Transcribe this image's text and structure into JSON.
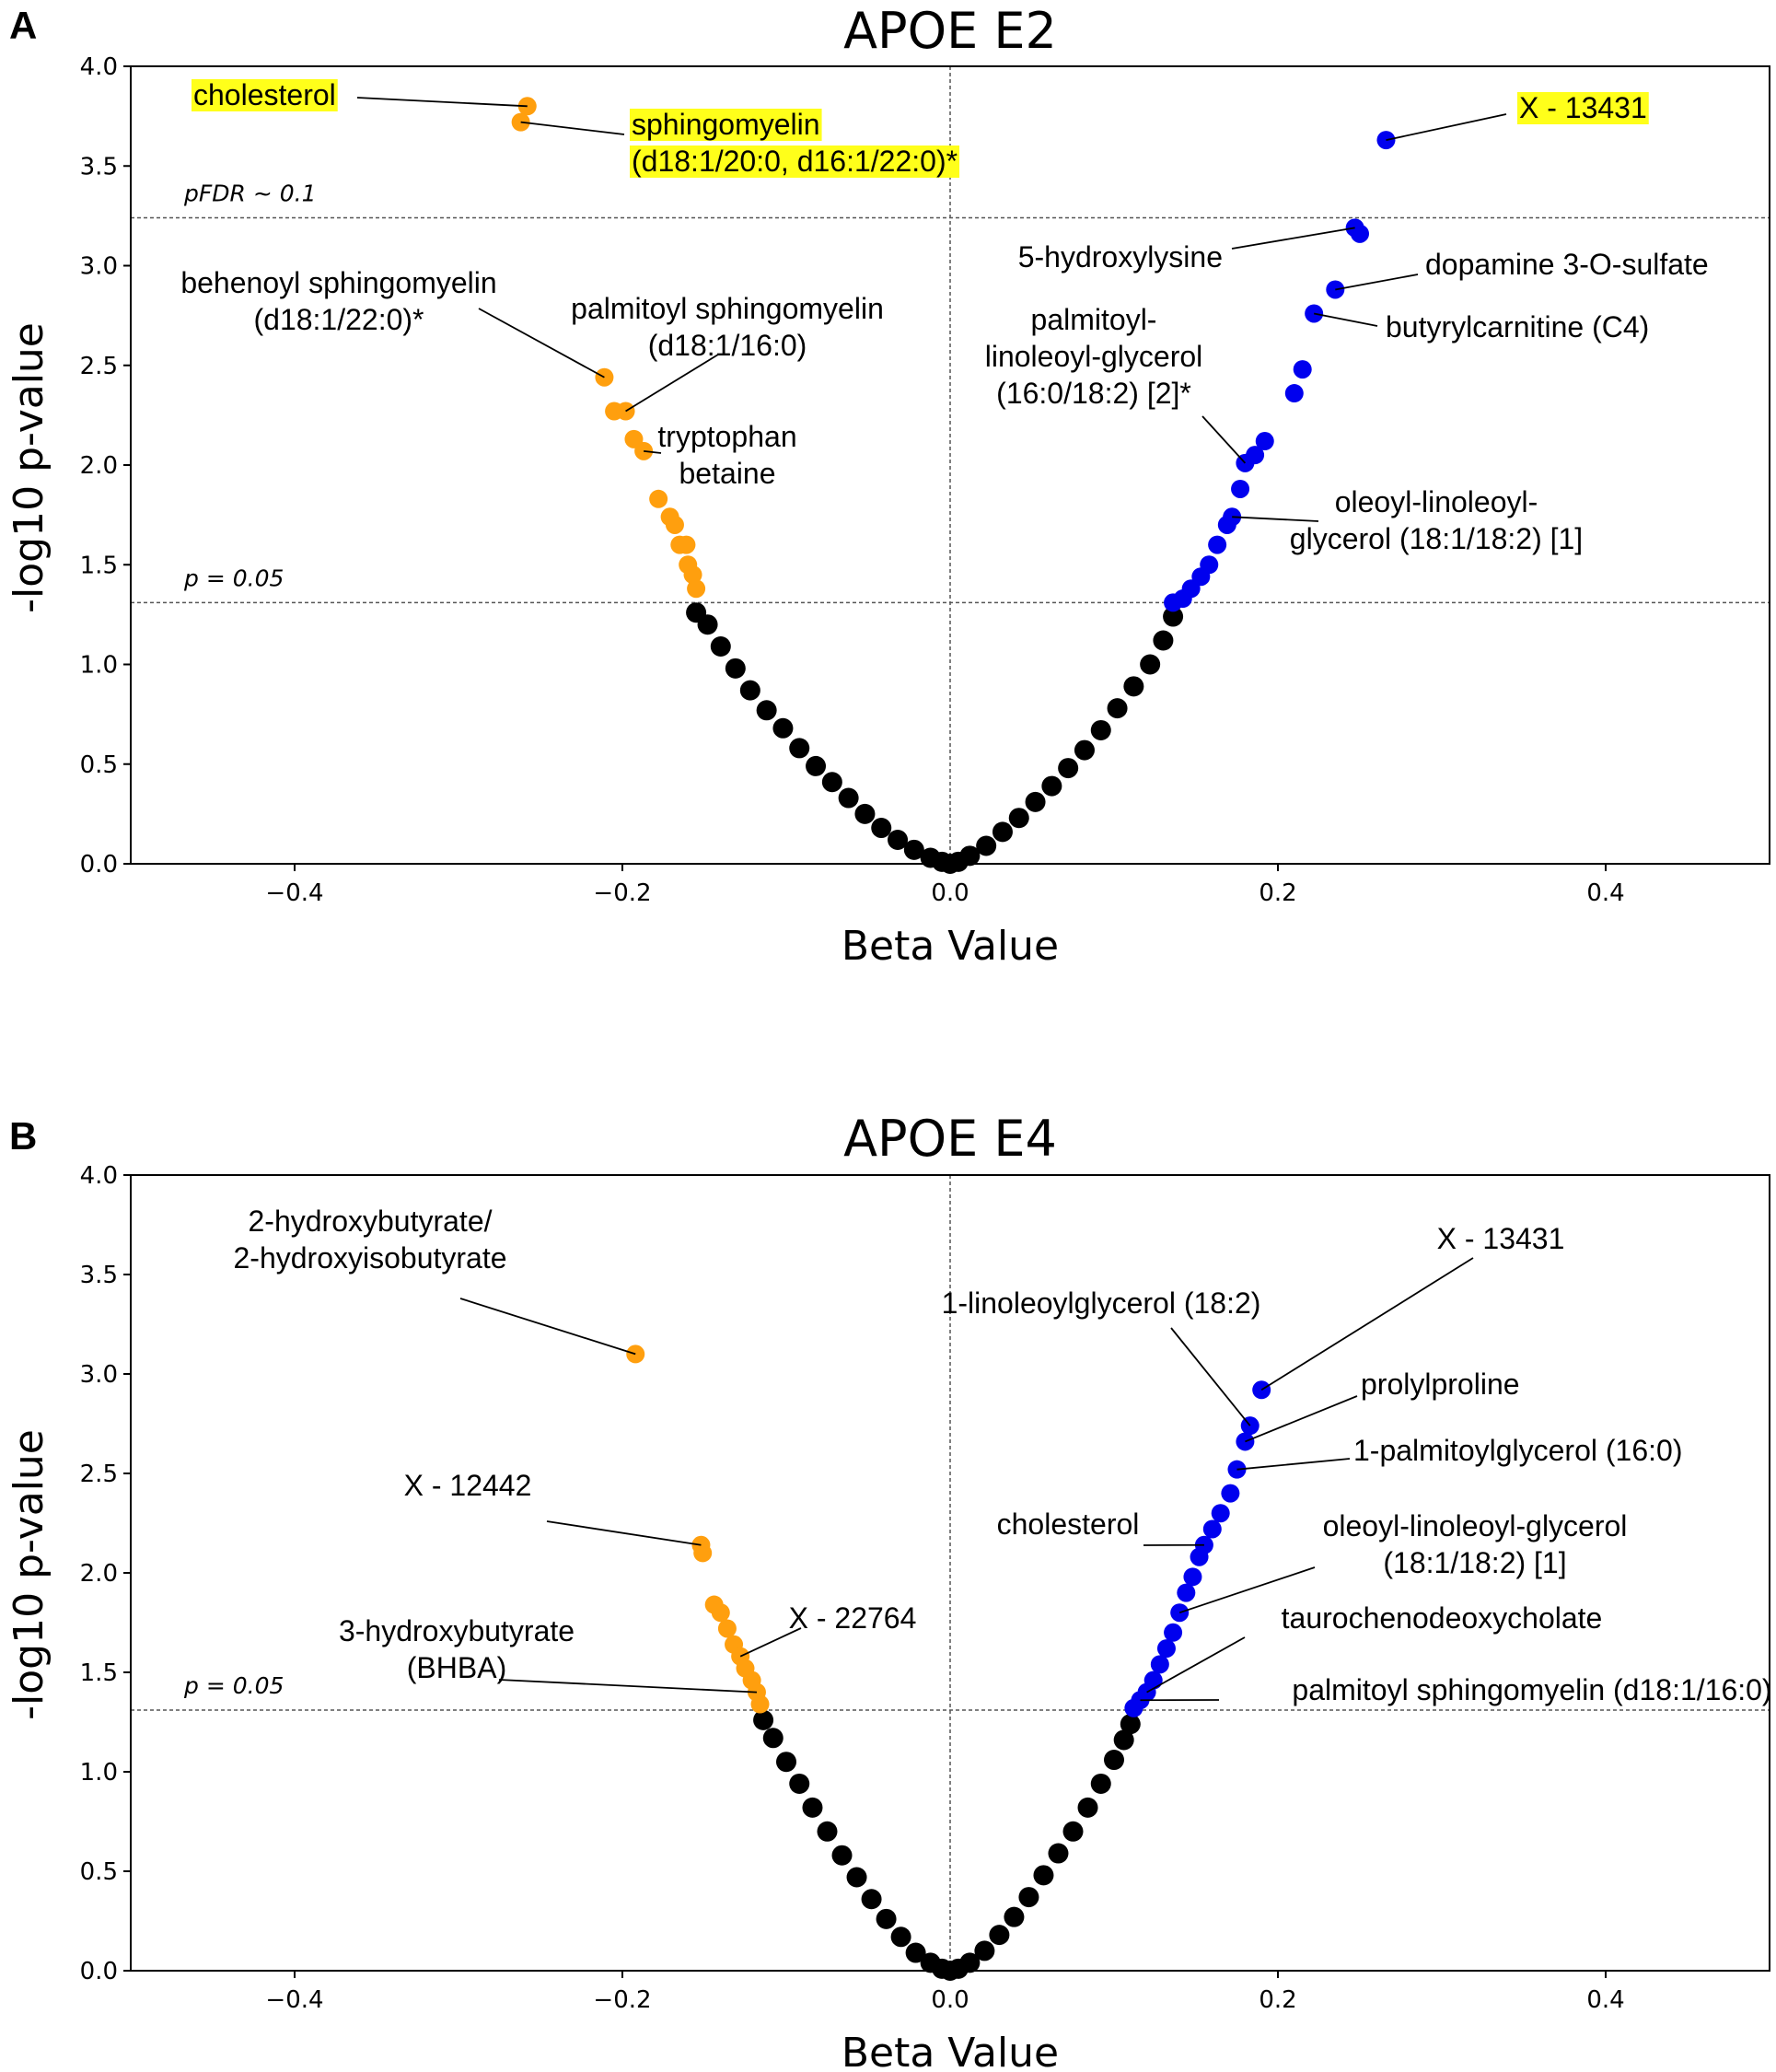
{
  "chart_data": [
    {
      "panel": "A",
      "type": "scatter",
      "title": "APOE E2",
      "xlabel": "Beta Value",
      "ylabel": "-log10 p-value",
      "xlim": [
        -0.5,
        0.5
      ],
      "ylim": [
        0,
        4.0
      ],
      "xticks": [
        -0.4,
        -0.2,
        0.0,
        0.2,
        0.4
      ],
      "xtick_labels": [
        "−0.4",
        "−0.2",
        "0.0",
        "0.2",
        "0.4"
      ],
      "yticks": [
        0.0,
        0.5,
        1.0,
        1.5,
        2.0,
        2.5,
        3.0,
        3.5,
        4.0
      ],
      "ytick_labels": [
        "0.0",
        "0.5",
        "1.0",
        "1.5",
        "2.0",
        "2.5",
        "3.0",
        "3.5",
        "4.0"
      ],
      "grid": false,
      "colors": {
        "negative_significant": "#ff9f0e",
        "positive_significant": "#0000ee",
        "not_significant": "#000000"
      },
      "thresholds": [
        {
          "label": "pFDR ~ 0.1",
          "y": 3.24
        },
        {
          "label": "p = 0.05",
          "y": 1.31
        }
      ],
      "series": [
        {
          "color": "#ff9f0e",
          "x": [
            -0.258,
            -0.262,
            -0.211,
            -0.205,
            -0.198,
            -0.193,
            -0.187,
            -0.178,
            -0.171,
            -0.168,
            -0.165,
            -0.161,
            -0.16,
            -0.157,
            -0.155
          ],
          "y": [
            3.8,
            3.72,
            2.44,
            2.27,
            2.27,
            2.13,
            2.07,
            1.83,
            1.74,
            1.7,
            1.6,
            1.6,
            1.5,
            1.45,
            1.38
          ]
        },
        {
          "color": "#0000ee",
          "x": [
            0.266,
            0.25,
            0.247,
            0.235,
            0.222,
            0.215,
            0.21,
            0.192,
            0.186,
            0.18,
            0.177,
            0.172,
            0.169,
            0.163,
            0.158,
            0.153,
            0.147,
            0.142,
            0.136
          ],
          "y": [
            3.63,
            3.16,
            3.19,
            2.88,
            2.76,
            2.48,
            2.36,
            2.12,
            2.05,
            2.01,
            1.88,
            1.74,
            1.7,
            1.6,
            1.5,
            1.44,
            1.38,
            1.33,
            1.31
          ]
        },
        {
          "color": "#000000",
          "x": [
            -0.155,
            -0.148,
            -0.14,
            -0.131,
            -0.122,
            -0.112,
            -0.102,
            -0.092,
            -0.082,
            -0.072,
            -0.062,
            -0.052,
            -0.042,
            -0.032,
            -0.022,
            -0.012,
            -0.005,
            0.0,
            0.005,
            0.012,
            0.022,
            0.032,
            0.042,
            0.052,
            0.062,
            0.072,
            0.082,
            0.092,
            0.102,
            0.112,
            0.122,
            0.13,
            0.136
          ],
          "y": [
            1.26,
            1.2,
            1.09,
            0.98,
            0.87,
            0.77,
            0.68,
            0.58,
            0.49,
            0.41,
            0.33,
            0.25,
            0.18,
            0.12,
            0.07,
            0.03,
            0.01,
            0.0,
            0.01,
            0.04,
            0.09,
            0.16,
            0.23,
            0.31,
            0.39,
            0.48,
            0.57,
            0.67,
            0.78,
            0.89,
            1.0,
            1.12,
            1.24
          ]
        }
      ],
      "annotations": [
        {
          "lines": [
            "cholesterol"
          ],
          "highlight": true,
          "x": -0.258,
          "y": 3.8
        },
        {
          "lines": [
            "sphingomyelin",
            "(d18:1/20:0, d16:1/22:0)*"
          ],
          "highlight": true,
          "x": -0.262,
          "y": 3.72
        },
        {
          "lines": [
            "X - 13431"
          ],
          "highlight": true,
          "x": 0.266,
          "y": 3.63
        },
        {
          "lines": [
            "5-hydroxylysine"
          ],
          "x": 0.247,
          "y": 3.19
        },
        {
          "lines": [
            "dopamine 3-O-sulfate"
          ],
          "x": 0.235,
          "y": 2.88
        },
        {
          "lines": [
            "butyrylcarnitine (C4)"
          ],
          "x": 0.222,
          "y": 2.76
        },
        {
          "lines": [
            "behenoyl sphingomyelin",
            "(d18:1/22:0)*"
          ],
          "x": -0.211,
          "y": 2.44
        },
        {
          "lines": [
            "palmitoyl sphingomyelin",
            "(d18:1/16:0)"
          ],
          "x": -0.198,
          "y": 2.27
        },
        {
          "lines": [
            "tryptophan",
            "betaine"
          ],
          "x": -0.187,
          "y": 2.07
        },
        {
          "lines": [
            "palmitoyl-",
            "linoleoyl-glycerol",
            "(16:0/18:2) [2]*"
          ],
          "x": 0.18,
          "y": 2.01
        },
        {
          "lines": [
            "oleoyl-linoleoyl-",
            "glycerol (18:1/18:2) [1]"
          ],
          "x": 0.172,
          "y": 1.74
        }
      ]
    },
    {
      "panel": "B",
      "type": "scatter",
      "title": "APOE E4",
      "xlabel": "Beta Value",
      "ylabel": "-log10 p-value",
      "xlim": [
        -0.5,
        0.5
      ],
      "ylim": [
        0,
        4.0
      ],
      "xticks": [
        -0.4,
        -0.2,
        0.0,
        0.2,
        0.4
      ],
      "xtick_labels": [
        "−0.4",
        "−0.2",
        "0.0",
        "0.2",
        "0.4"
      ],
      "yticks": [
        0.0,
        0.5,
        1.0,
        1.5,
        2.0,
        2.5,
        3.0,
        3.5,
        4.0
      ],
      "ytick_labels": [
        "0.0",
        "0.5",
        "1.0",
        "1.5",
        "2.0",
        "2.5",
        "3.0",
        "3.5",
        "4.0"
      ],
      "grid": false,
      "colors": {
        "negative_significant": "#ff9f0e",
        "positive_significant": "#0000ee",
        "not_significant": "#000000"
      },
      "thresholds": [
        {
          "label": "p = 0.05",
          "y": 1.31
        }
      ],
      "series": [
        {
          "color": "#ff9f0e",
          "x": [
            -0.192,
            -0.152,
            -0.151,
            -0.144,
            -0.14,
            -0.136,
            -0.132,
            -0.128,
            -0.125,
            -0.121,
            -0.118,
            -0.116
          ],
          "y": [
            3.1,
            2.14,
            2.1,
            1.84,
            1.8,
            1.72,
            1.64,
            1.58,
            1.52,
            1.46,
            1.4,
            1.34
          ]
        },
        {
          "color": "#0000ee",
          "x": [
            0.19,
            0.183,
            0.18,
            0.175,
            0.171,
            0.165,
            0.16,
            0.155,
            0.152,
            0.148,
            0.144,
            0.14,
            0.136,
            0.132,
            0.128,
            0.124,
            0.12,
            0.116,
            0.112
          ],
          "y": [
            2.92,
            2.74,
            2.66,
            2.52,
            2.4,
            2.3,
            2.22,
            2.14,
            2.08,
            1.98,
            1.9,
            1.8,
            1.7,
            1.62,
            1.54,
            1.46,
            1.4,
            1.36,
            1.32
          ]
        },
        {
          "color": "#000000",
          "x": [
            -0.114,
            -0.108,
            -0.1,
            -0.092,
            -0.084,
            -0.075,
            -0.066,
            -0.057,
            -0.048,
            -0.039,
            -0.03,
            -0.021,
            -0.012,
            -0.005,
            0.0,
            0.005,
            0.012,
            0.021,
            0.03,
            0.039,
            0.048,
            0.057,
            0.066,
            0.075,
            0.084,
            0.092,
            0.1,
            0.106,
            0.11
          ],
          "y": [
            1.26,
            1.17,
            1.05,
            0.94,
            0.82,
            0.7,
            0.58,
            0.47,
            0.36,
            0.26,
            0.17,
            0.09,
            0.04,
            0.01,
            0.0,
            0.01,
            0.04,
            0.1,
            0.18,
            0.27,
            0.37,
            0.48,
            0.59,
            0.7,
            0.82,
            0.94,
            1.06,
            1.16,
            1.24
          ]
        }
      ],
      "annotations": [
        {
          "lines": [
            "2-hydroxybutyrate/",
            "2-hydroxyisobutyrate"
          ],
          "x": -0.192,
          "y": 3.1
        },
        {
          "lines": [
            "X - 13431"
          ],
          "x": 0.19,
          "y": 2.92
        },
        {
          "lines": [
            "1-linoleoylglycerol (18:2)"
          ],
          "x": 0.183,
          "y": 2.74
        },
        {
          "lines": [
            "prolylproline"
          ],
          "x": 0.18,
          "y": 2.66
        },
        {
          "lines": [
            "1-palmitoylglycerol (16:0)"
          ],
          "x": 0.175,
          "y": 2.52
        },
        {
          "lines": [
            "X - 12442"
          ],
          "x": -0.152,
          "y": 2.14
        },
        {
          "lines": [
            "cholesterol"
          ],
          "x": 0.155,
          "y": 2.14
        },
        {
          "lines": [
            "oleoyl-linoleoyl-glycerol",
            "(18:1/18:2) [1]"
          ],
          "x": 0.14,
          "y": 1.8
        },
        {
          "lines": [
            "X - 22764"
          ],
          "x": -0.128,
          "y": 1.58
        },
        {
          "lines": [
            "taurochenodeoxycholate"
          ],
          "x": 0.12,
          "y": 1.4
        },
        {
          "lines": [
            "3-hydroxybutyrate",
            "(BHBA)"
          ],
          "x": -0.118,
          "y": 1.4
        },
        {
          "lines": [
            "palmitoyl sphingomyelin (d18:1/16:0)"
          ],
          "x": 0.116,
          "y": 1.36
        }
      ]
    }
  ]
}
